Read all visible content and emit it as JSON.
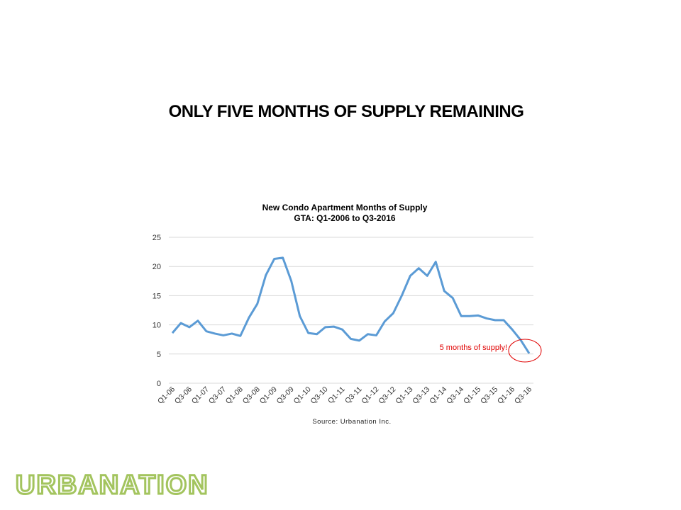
{
  "slide_title": "ONLY FIVE MONTHS OF SUPPLY REMAINING",
  "logo_text": "URBANATION",
  "chart_data": {
    "type": "line",
    "title": "New Condo Apartment Months of Supply",
    "subtitle": "GTA:  Q1-2006 to Q3-2016",
    "source": "Source: Urbanation Inc.",
    "annotation": "5 months of supply!",
    "ylim": [
      0,
      25
    ],
    "yticks": [
      0,
      5,
      10,
      15,
      20,
      25
    ],
    "grid": true,
    "line_color": "#5b9bd5",
    "annotation_color": "#e00000",
    "x": [
      "Q1-06",
      "Q2-06",
      "Q3-06",
      "Q4-06",
      "Q1-07",
      "Q2-07",
      "Q3-07",
      "Q4-07",
      "Q1-08",
      "Q2-08",
      "Q3-08",
      "Q4-08",
      "Q1-09",
      "Q2-09",
      "Q3-09",
      "Q4-09",
      "Q1-10",
      "Q2-10",
      "Q3-10",
      "Q4-10",
      "Q1-11",
      "Q2-11",
      "Q3-11",
      "Q4-11",
      "Q1-12",
      "Q2-12",
      "Q3-12",
      "Q4-12",
      "Q1-13",
      "Q2-13",
      "Q3-13",
      "Q4-13",
      "Q1-14",
      "Q2-14",
      "Q3-14",
      "Q4-14",
      "Q1-15",
      "Q2-15",
      "Q3-15",
      "Q4-15",
      "Q1-16",
      "Q2-16",
      "Q3-16"
    ],
    "values": [
      8.6,
      10.3,
      9.6,
      10.7,
      8.9,
      8.5,
      8.2,
      8.5,
      8.1,
      11.2,
      13.6,
      18.5,
      21.3,
      21.5,
      17.5,
      11.5,
      8.6,
      8.4,
      9.6,
      9.7,
      9.2,
      7.6,
      7.3,
      8.4,
      8.2,
      10.6,
      12.0,
      15.0,
      18.4,
      19.7,
      18.4,
      20.8,
      15.8,
      14.6,
      11.5,
      11.5,
      11.6,
      11.1,
      10.8,
      10.8,
      9.2,
      7.4,
      5.1
    ]
  }
}
